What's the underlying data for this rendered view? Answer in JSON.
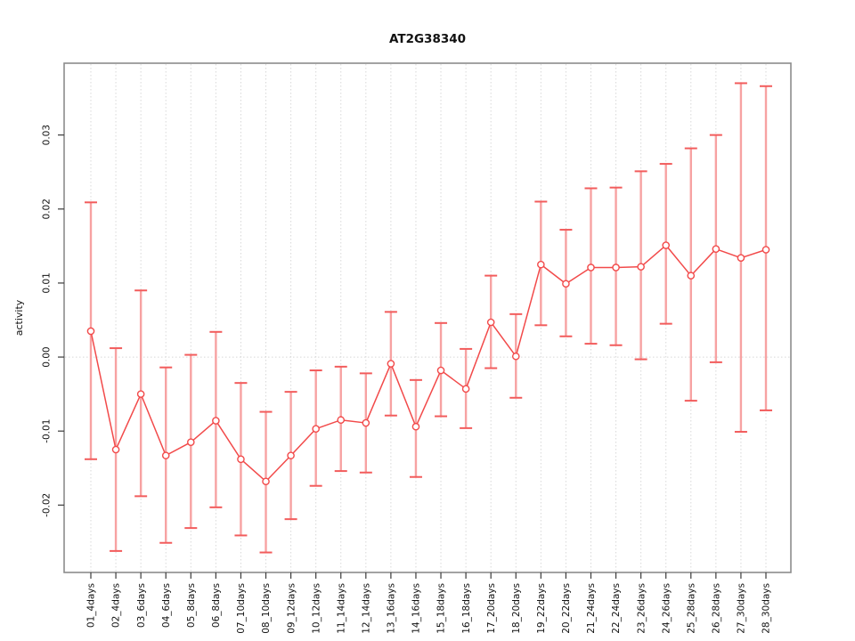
{
  "chart_data": {
    "type": "line",
    "title": "AT2G38340",
    "xlabel": "",
    "ylabel": "activity",
    "categories": [
      "01_4days",
      "02_4days",
      "03_6days",
      "04_6days",
      "05_8days",
      "06_8days",
      "07_10days",
      "08_10days",
      "09_12days",
      "10_12days",
      "11_14days",
      "12_14days",
      "13_16days",
      "14_16days",
      "15_18days",
      "16_18days",
      "17_20days",
      "18_20days",
      "19_22days",
      "20_22days",
      "21_24days",
      "22_24days",
      "23_26days",
      "24_26days",
      "25_28days",
      "26_28days",
      "27_30days",
      "28_30days"
    ],
    "values": [
      0.0035,
      -0.0125,
      -0.005,
      -0.0133,
      -0.0115,
      -0.0086,
      -0.0138,
      -0.0168,
      -0.0133,
      -0.0097,
      -0.0085,
      -0.0089,
      -0.0009,
      -0.0094,
      -0.0018,
      -0.0043,
      0.0047,
      0.0001,
      0.0125,
      0.0099,
      0.0121,
      0.0121,
      0.0122,
      0.0151,
      0.011,
      0.0146,
      0.0134,
      0.0145
    ],
    "error_high": [
      0.0209,
      0.0012,
      0.009,
      -0.0014,
      0.0003,
      0.0034,
      -0.0035,
      -0.0074,
      -0.0047,
      -0.0018,
      -0.0013,
      -0.0022,
      0.0061,
      -0.0031,
      0.0046,
      0.0011,
      0.011,
      0.0058,
      0.021,
      0.0172,
      0.0228,
      0.0229,
      0.0251,
      0.0261,
      0.0282,
      0.03,
      0.037,
      0.0366
    ],
    "error_low": [
      -0.0138,
      -0.0262,
      -0.0188,
      -0.0251,
      -0.0231,
      -0.0203,
      -0.0241,
      -0.0264,
      -0.0219,
      -0.0174,
      -0.0154,
      -0.0156,
      -0.0079,
      -0.0162,
      -0.008,
      -0.0096,
      -0.0015,
      -0.0055,
      0.0043,
      0.0028,
      0.0018,
      0.0016,
      -0.0003,
      0.0045,
      -0.0059,
      -0.0007,
      -0.0101,
      -0.0072
    ],
    "y_tick_labels": [
      "-0.02",
      "-0.01",
      "0.00",
      "0.01",
      "0.02",
      "0.03"
    ],
    "y_tick_values": [
      -0.02,
      -0.01,
      0.0,
      0.01,
      0.02,
      0.03
    ],
    "ylim": [
      -0.0291,
      0.0397
    ],
    "grid": "vertical dotted at each category; horizontal dotted at 0 only",
    "legend": "none",
    "colors": {
      "series_line": "#f24a4a",
      "point_stroke": "#f24a4a",
      "point_fill": "#ffffff",
      "errorbar_line": "#f7a2a2",
      "errorbar_cap": "#f25c5c",
      "gridline": "#d8d8d8",
      "zero_line": "#d8d8d8",
      "box": "#8c8c8c",
      "tick": "#3a3a3a",
      "text": "#111111"
    }
  }
}
